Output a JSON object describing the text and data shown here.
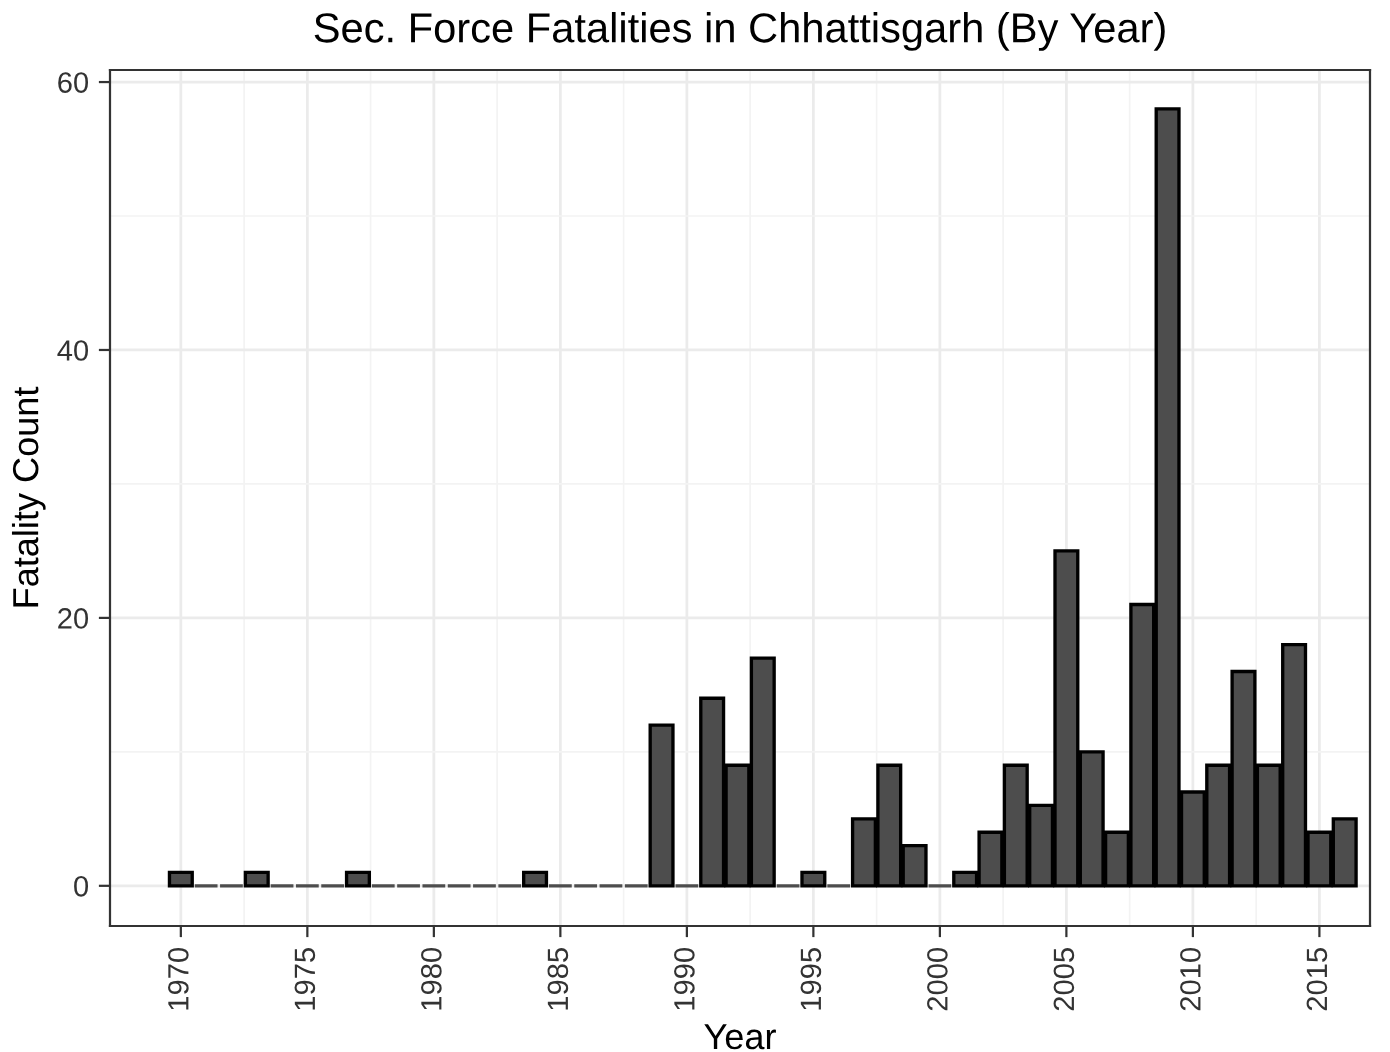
{
  "chart_data": {
    "type": "bar",
    "title": "Sec. Force Fatalities in Chhattisgarh (By Year)",
    "xlabel": "Year",
    "ylabel": "Fatality Count",
    "x": [
      1970,
      1971,
      1972,
      1973,
      1974,
      1975,
      1976,
      1977,
      1978,
      1979,
      1980,
      1981,
      1982,
      1983,
      1984,
      1985,
      1986,
      1987,
      1988,
      1989,
      1990,
      1991,
      1992,
      1993,
      1994,
      1995,
      1996,
      1997,
      1998,
      1999,
      2000,
      2001,
      2002,
      2003,
      2004,
      2005,
      2006,
      2007,
      2008,
      2009,
      2010,
      2011,
      2012,
      2013,
      2014,
      2015,
      2016
    ],
    "values": [
      1,
      0,
      0,
      1,
      0,
      0,
      0,
      1,
      0,
      0,
      0,
      0,
      0,
      0,
      1,
      0,
      0,
      0,
      0,
      12,
      0,
      14,
      9,
      17,
      0,
      1,
      0,
      5,
      9,
      3,
      0,
      1,
      4,
      9,
      6,
      25,
      10,
      4,
      21,
      58,
      7,
      9,
      16,
      9,
      18,
      4,
      5
    ],
    "color": "#4d4d4d",
    "xlim": [
      1967.2,
      2017
    ],
    "xticks": [
      1970,
      1975,
      1980,
      1985,
      1990,
      1995,
      2000,
      2005,
      2010,
      2015
    ],
    "ylim": [
      -3,
      60.9
    ],
    "yticks": [
      0,
      20,
      40,
      60
    ],
    "grid": true
  }
}
